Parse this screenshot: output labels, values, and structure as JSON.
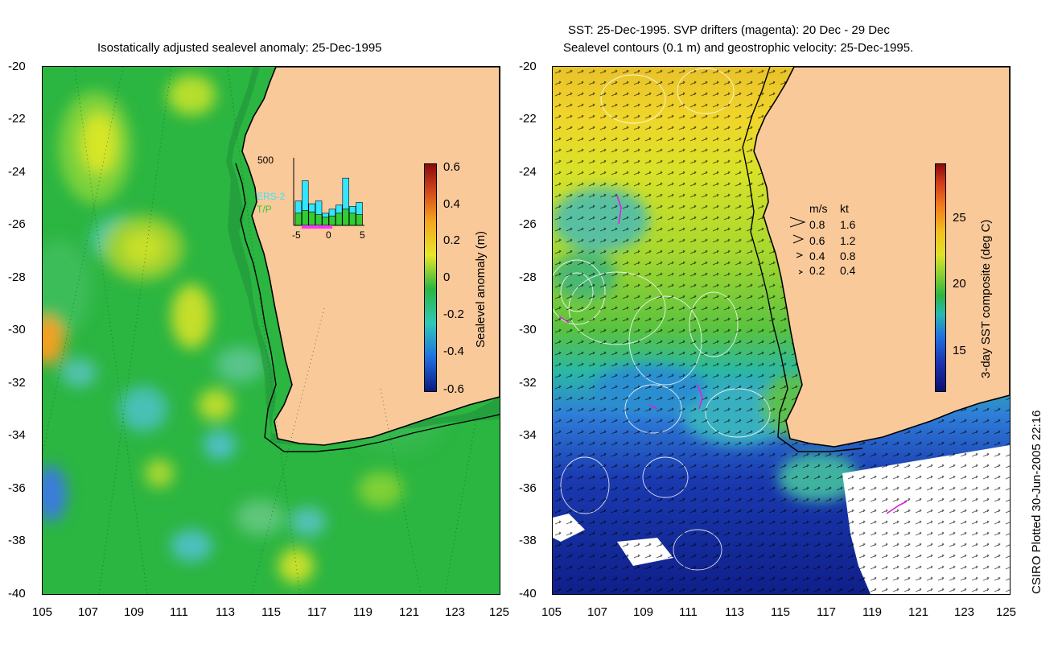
{
  "left_panel": {
    "title": "Isostatically adjusted sealevel anomaly: 25-Dec-1995",
    "colorbar": {
      "label": "Sealevel anomaly (m)",
      "ticks": [
        "0.6",
        "0.4",
        "0.2",
        "0",
        "-0.2",
        "-0.4",
        "-0.6"
      ],
      "range": [
        -0.6,
        0.6
      ]
    },
    "histogram": {
      "ymax_label": "500",
      "legend": [
        "ERS-2",
        "T/P"
      ],
      "x_ticks": [
        "-5",
        "0",
        "5"
      ],
      "ers2_counts": [
        180,
        330,
        160,
        180,
        90,
        120,
        150,
        350,
        140,
        170
      ],
      "tp_counts": [
        90,
        110,
        100,
        80,
        60,
        70,
        90,
        120,
        90,
        80
      ],
      "colors": {
        "ers2": "#33e6ff",
        "tp": "#33cc33",
        "axis": "#000000",
        "window": "#ff33ff"
      }
    }
  },
  "right_panel": {
    "title_line1": "SST: 25-Dec-1995. SVP drifters (magenta): 20 Dec - 29 Dec",
    "title_line2": "Sealevel contours (0.1 m) and geostrophic velocity: 25-Dec-1995.",
    "colorbar": {
      "label": "3-day SST composite (deg C)",
      "ticks": [
        "25",
        "20",
        "15"
      ],
      "range": [
        12,
        29
      ]
    },
    "velocity_legend": {
      "header_ms": "m/s",
      "header_kt": "kt",
      "rows": [
        {
          "ms": "0.8",
          "kt": "1.6"
        },
        {
          "ms": "0.6",
          "kt": "1.2"
        },
        {
          "ms": "0.4",
          "kt": "0.8"
        },
        {
          "ms": "0.2",
          "kt": "0.4"
        }
      ]
    }
  },
  "axes": {
    "y_ticks": [
      "-20",
      "-22",
      "-24",
      "-26",
      "-28",
      "-30",
      "-32",
      "-34",
      "-36",
      "-38",
      "-40"
    ],
    "x_ticks": [
      "105",
      "107",
      "109",
      "111",
      "113",
      "115",
      "117",
      "119",
      "121",
      "123",
      "125"
    ],
    "lon_range": [
      105,
      125
    ],
    "lat_range": [
      -40,
      -20
    ]
  },
  "credit": "CSIRO Plotted 30-Jun-2005 22:16",
  "colors": {
    "land": "#fac99a",
    "ocean_left": "#2bb541",
    "ocean_right_warm": "#9ad030",
    "ocean_right_cold": "#1a3ab0",
    "drifters": "#e020e0"
  }
}
